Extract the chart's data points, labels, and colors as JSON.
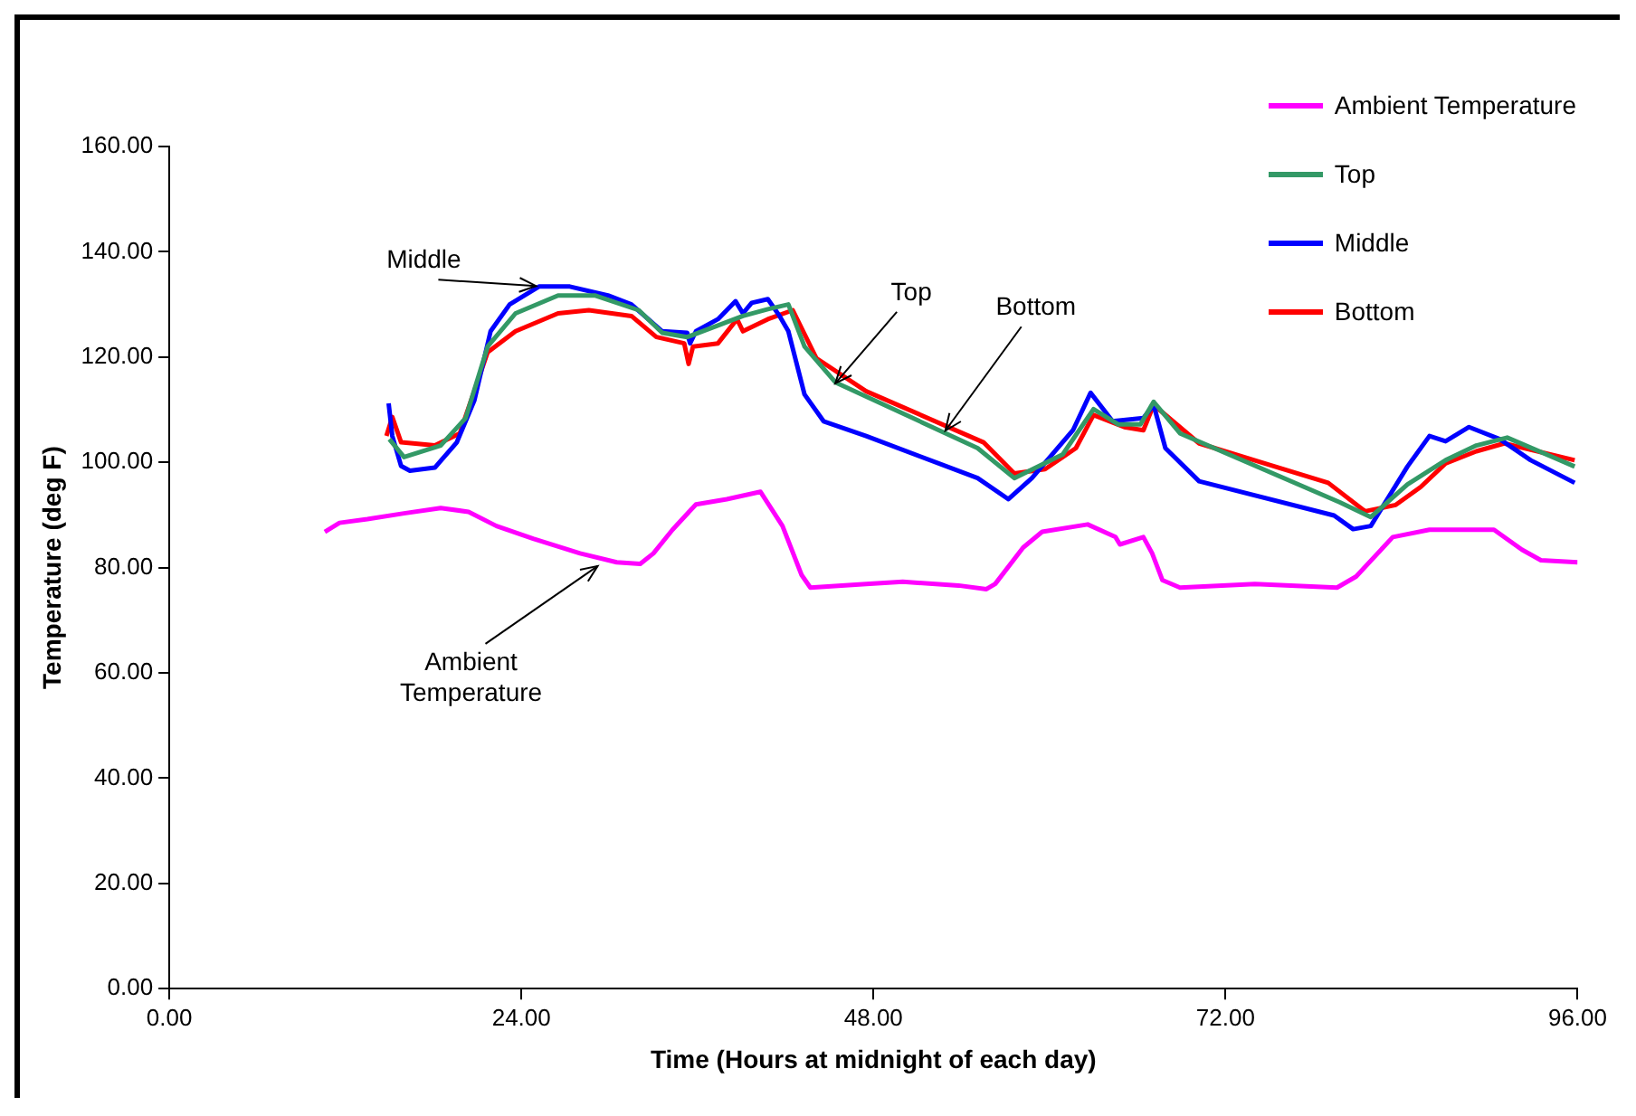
{
  "chart_data": {
    "type": "line",
    "xlabel": "Time (Hours at midnight of each day)",
    "ylabel": "Temperature (deg F)",
    "xlim": [
      0,
      96
    ],
    "xticks": [
      {
        "value": 0,
        "label": "0.00"
      },
      {
        "value": 24,
        "label": "24.00"
      },
      {
        "value": 48,
        "label": "48.00"
      },
      {
        "value": 72,
        "label": "72.00"
      },
      {
        "value": 96,
        "label": "96.00"
      }
    ],
    "ylim": [
      0,
      160
    ],
    "yticks": [
      {
        "value": 0,
        "label": "0.00"
      },
      {
        "value": 20,
        "label": "20.00"
      },
      {
        "value": 40,
        "label": "40.00"
      },
      {
        "value": 60,
        "label": "60.00"
      },
      {
        "value": 80,
        "label": "80.00"
      },
      {
        "value": 100,
        "label": "100.00"
      },
      {
        "value": 120,
        "label": "120.00"
      },
      {
        "value": 140,
        "label": "140.00"
      },
      {
        "value": 160,
        "label": "160.00"
      }
    ],
    "legend": "top right",
    "marker": "none",
    "line_style": "solid",
    "series": [
      {
        "name": "Ambient Temperature",
        "color": "#ff00ff",
        "x": [
          10.6,
          11.6,
          13.5,
          16,
          18.5,
          20.4,
          22.3,
          24.8,
          28,
          30.5,
          32.1,
          33,
          34.3,
          35.9,
          38,
          40.3,
          41.8,
          43.1,
          43.7,
          47.5,
          50,
          53.8,
          55.7,
          56.3,
          58.2,
          59.5,
          62.6,
          64.5,
          64.8,
          66.4,
          67,
          67.7,
          68.9,
          74,
          79.6,
          80.9,
          83.4,
          85.9,
          90.3,
          92.2,
          93.5,
          96
        ],
        "values": [
          86.8,
          88.5,
          89.2,
          90.3,
          91.3,
          90.6,
          87.9,
          85.5,
          82.7,
          81,
          80.7,
          82.7,
          87.2,
          92,
          93,
          94.4,
          87.9,
          78.6,
          76.2,
          76.9,
          77.3,
          76.6,
          75.9,
          76.9,
          83.8,
          86.8,
          88.2,
          85.8,
          84.4,
          85.8,
          82.7,
          77.6,
          76.2,
          76.9,
          76.2,
          78.3,
          85.8,
          87.2,
          87.2,
          83.4,
          81.4,
          81
        ]
      },
      {
        "name": "Top",
        "color": "#339966",
        "x": [
          15,
          16,
          18.5,
          20.2,
          21.7,
          23.6,
          26.5,
          29,
          32,
          33.6,
          35.3,
          37.4,
          39.1,
          40.8,
          42.2,
          43.3,
          45.4,
          55.1,
          57.6,
          60.9,
          63,
          64.7,
          66.2,
          67.1,
          68.9,
          79.8,
          81.9,
          84.4,
          87,
          89.1,
          91.2,
          95.8
        ],
        "values": [
          104.4,
          101,
          103.2,
          108.4,
          122,
          128.3,
          131.7,
          131.7,
          128.9,
          124.6,
          123.8,
          126,
          127.8,
          129.1,
          130,
          122,
          115.2,
          102.7,
          97,
          101.5,
          110.1,
          107.2,
          107.2,
          111.5,
          105.5,
          92.4,
          89.6,
          95.8,
          100.4,
          103.2,
          104.7,
          99.2
        ]
      },
      {
        "name": "Middle",
        "color": "#0000ff",
        "x": [
          14.95,
          15.2,
          15.8,
          16.4,
          18.1,
          19.6,
          20.8,
          21.9,
          23.2,
          25.2,
          27.3,
          29.9,
          31.5,
          33.6,
          35.3,
          35.5,
          35.9,
          37.4,
          38.6,
          39.1,
          39.7,
          40.8,
          41.6,
          42.2,
          43.3,
          44.6,
          47.5,
          55.1,
          57.2,
          58.8,
          61.6,
          62.8,
          64.3,
          66.4,
          67.1,
          67.9,
          70.2,
          79.4,
          80.7,
          81.9,
          84.4,
          85.9,
          87,
          88.6,
          90.7,
          92.8,
          95.8
        ],
        "values": [
          111.2,
          105,
          99.3,
          98.4,
          99,
          103.8,
          111.8,
          124.9,
          130,
          133.4,
          133.4,
          131.7,
          130,
          124.9,
          124.6,
          122.6,
          124.9,
          127.2,
          130.6,
          128.3,
          130.3,
          131,
          127.8,
          124.9,
          112.9,
          107.8,
          105,
          97,
          93,
          97,
          106.1,
          113.2,
          107.8,
          108.4,
          110.9,
          102.7,
          96.4,
          89.9,
          87.3,
          87.9,
          99.2,
          105,
          104,
          106.7,
          104.4,
          100.4,
          96.1
        ]
      },
      {
        "name": "Bottom",
        "color": "#ff0000",
        "x": [
          14.8,
          15.2,
          15.8,
          18.1,
          19.8,
          21.7,
          23.6,
          26.5,
          28.6,
          31.5,
          33.2,
          35.1,
          35.4,
          35.7,
          37.4,
          38.7,
          39.1,
          40.8,
          42.5,
          44.1,
          47.5,
          55.5,
          57.6,
          59.7,
          61.8,
          63,
          65.1,
          66.4,
          67.1,
          70.2,
          79,
          81.5,
          83.6,
          85.3,
          87,
          89.1,
          91,
          95.8
        ],
        "values": [
          105,
          108.6,
          103.8,
          103.2,
          105.5,
          120.9,
          124.9,
          128.3,
          128.9,
          127.8,
          123.8,
          122.6,
          118.7,
          122,
          122.6,
          127.2,
          124.9,
          127.2,
          128.9,
          119.8,
          113.5,
          103.8,
          97.9,
          98.7,
          102.7,
          109,
          106.7,
          106.1,
          110.9,
          103.6,
          96.1,
          90.7,
          91.9,
          95.3,
          99.8,
          102.1,
          103.6,
          100.4
        ]
      }
    ],
    "annotations": [
      {
        "text": "Middle",
        "x": 25,
        "y": 133.5
      },
      {
        "text": "Top",
        "x": 45.4,
        "y": 115
      },
      {
        "text": "Bottom",
        "x": 52.9,
        "y": 106
      },
      {
        "text": "Ambient Temperature",
        "x": 29.2,
        "y": 80.3
      }
    ]
  }
}
